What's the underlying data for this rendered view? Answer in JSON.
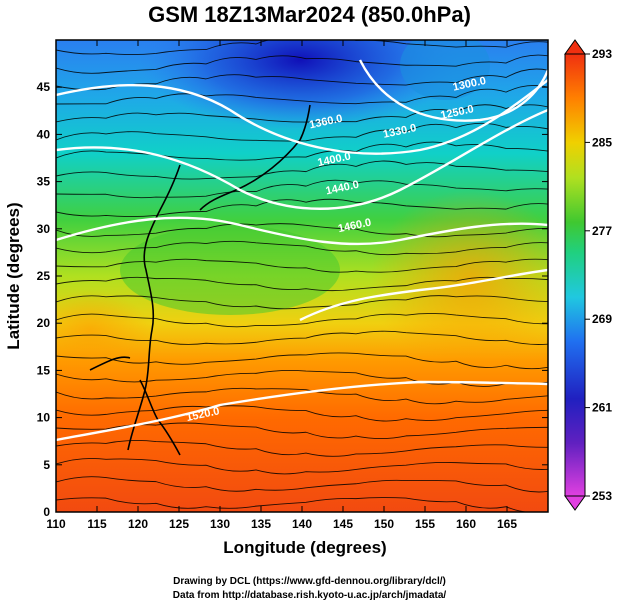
{
  "title": "GSM 18Z13Mar2024 (850.0hPa)",
  "xlabel": "Longitude (degrees)",
  "ylabel": "Latitude  (degrees)",
  "credit_line_1": "Drawing by DCL (https://www.gfd-dennou.org/library/dcl/)",
  "credit_line_2": "Data from http://database.rish.kyoto-u.ac.jp/arch/jmadata/",
  "chart_data": {
    "type": "heatmap",
    "field": "temperature with geopotential contours and wind streamlines",
    "xlim": [
      110,
      170
    ],
    "ylim": [
      0,
      50
    ],
    "x_ticks": [
      110,
      115,
      120,
      125,
      130,
      135,
      140,
      145,
      150,
      155,
      160,
      165
    ],
    "y_ticks": [
      0,
      5,
      10,
      15,
      20,
      25,
      30,
      35,
      40,
      45
    ],
    "colorbar": {
      "min": 253,
      "max": 293,
      "ticks": [
        253,
        261,
        269,
        277,
        285,
        293
      ],
      "colors": [
        "#e040e0",
        "#2020c0",
        "#3090f0",
        "#20d8d0",
        "#30c830",
        "#a8e020",
        "#f0d000",
        "#ff8000",
        "#f03010"
      ]
    },
    "contour_labels": [
      {
        "text": "1250.0",
        "lon": 159,
        "lat": 42
      },
      {
        "text": "1300.0",
        "lon": 160.5,
        "lat": 45
      },
      {
        "text": "1330.0",
        "lon": 152,
        "lat": 40
      },
      {
        "text": "1360.0",
        "lon": 143,
        "lat": 41
      },
      {
        "text": "1400.0",
        "lon": 144,
        "lat": 37
      },
      {
        "text": "1440.0",
        "lon": 145,
        "lat": 34
      },
      {
        "text": "1460.0",
        "lon": 146.5,
        "lat": 30
      },
      {
        "text": "1520.0",
        "lon": 128,
        "lat": 10
      }
    ]
  }
}
